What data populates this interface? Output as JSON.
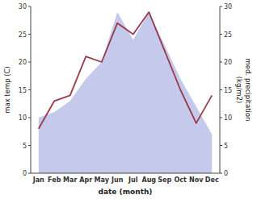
{
  "chart_data": {
    "type": "line",
    "xlabel": "date (month)",
    "ylabel": "max temp (C)",
    "y2label": "med. precipitation\n(kg/m2)",
    "categories": [
      "Jan",
      "Feb",
      "Mar",
      "Apr",
      "May",
      "Jun",
      "Jul",
      "Aug",
      "Sep",
      "Oct",
      "Nov",
      "Dec"
    ],
    "series": [
      {
        "type": "area",
        "axis": "y2",
        "color": "#c5caed",
        "values": [
          10,
          11,
          13,
          17,
          20,
          29,
          24,
          29,
          23,
          17,
          12,
          7
        ]
      },
      {
        "type": "line",
        "color": "#9b3a4a",
        "values": [
          8,
          13,
          14,
          21,
          20,
          27,
          25,
          29,
          22,
          15,
          9,
          14
        ]
      }
    ],
    "ylim": [
      0,
      30
    ],
    "yticks": [
      0,
      5,
      10,
      15,
      20,
      25,
      30
    ],
    "y2lim": [
      0,
      30
    ],
    "y2ticks": [
      0,
      5,
      10,
      15,
      20,
      25,
      30
    ]
  }
}
